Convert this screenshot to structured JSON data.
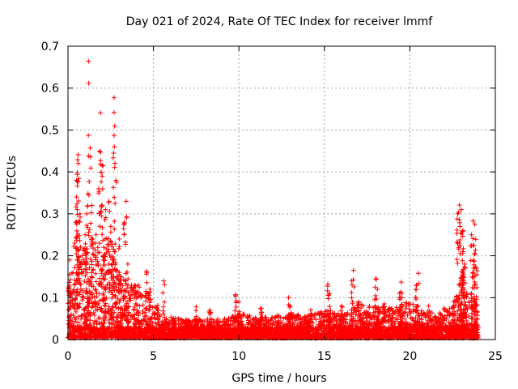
{
  "chart_data": {
    "type": "scatter",
    "title": "Day 021 of 2024, Rate Of TEC Index for receiver lmmf",
    "xlabel": "GPS time / hours",
    "ylabel": "ROTI / TECUs",
    "xlim": [
      0,
      25
    ],
    "ylim": [
      0,
      0.7
    ],
    "xticks": [
      0,
      5,
      10,
      15,
      20,
      25
    ],
    "yticks": [
      0,
      0.1,
      0.2,
      0.3,
      0.4,
      0.5,
      0.6,
      0.7
    ],
    "xtick_labels": [
      "0",
      "5",
      "10",
      "15",
      "20",
      "25"
    ],
    "ytick_labels": [
      "0",
      "0.1",
      "0.2",
      "0.3",
      "0.4",
      "0.5",
      "0.6",
      "0.7"
    ],
    "grid": true,
    "marker": "+",
    "color": "#ff0000",
    "series": [
      {
        "name": "ROTI",
        "notable_points": [
          [
            1.2,
            0.664
          ],
          [
            2.7,
            0.577
          ],
          [
            1.9,
            0.541
          ],
          [
            2.7,
            0.487
          ],
          [
            1.3,
            0.457
          ],
          [
            0.6,
            0.441
          ],
          [
            1.2,
            0.438
          ],
          [
            0.6,
            0.42
          ],
          [
            2.0,
            0.416
          ],
          [
            2.0,
            0.39
          ],
          [
            0.5,
            0.38
          ],
          [
            2.8,
            0.38
          ],
          [
            1.8,
            0.36
          ],
          [
            0.5,
            0.34
          ],
          [
            3.4,
            0.33
          ],
          [
            2.4,
            0.33
          ],
          [
            1.4,
            0.32
          ],
          [
            2.2,
            0.31
          ],
          [
            0.7,
            0.3
          ],
          [
            1.1,
            0.3
          ],
          [
            3.3,
            0.28
          ],
          [
            2.5,
            0.27
          ],
          [
            1.0,
            0.25
          ],
          [
            3.0,
            0.24
          ],
          [
            0.4,
            0.23
          ],
          [
            2.1,
            0.22
          ],
          [
            1.6,
            0.2
          ],
          [
            0.1,
            0.19
          ],
          [
            2.6,
            0.19
          ],
          [
            3.5,
            0.18
          ],
          [
            4.6,
            0.163
          ],
          [
            3.0,
            0.16
          ],
          [
            5.6,
            0.14
          ],
          [
            4.1,
            0.13
          ],
          [
            4.8,
            0.12
          ],
          [
            22.9,
            0.321
          ],
          [
            23.0,
            0.31
          ],
          [
            22.8,
            0.3
          ],
          [
            23.7,
            0.283
          ],
          [
            23.8,
            0.275
          ],
          [
            23.1,
            0.26
          ],
          [
            23.6,
            0.25
          ],
          [
            22.9,
            0.23
          ],
          [
            23.1,
            0.21
          ],
          [
            23.8,
            0.205
          ],
          [
            23.2,
            0.18
          ],
          [
            23.9,
            0.17
          ],
          [
            23.1,
            0.16
          ],
          [
            23.0,
            0.14
          ],
          [
            23.8,
            0.13
          ],
          [
            23.6,
            0.11
          ],
          [
            16.7,
            0.165
          ],
          [
            16.6,
            0.14
          ],
          [
            18.0,
            0.145
          ],
          [
            18.1,
            0.12
          ],
          [
            19.5,
            0.137
          ],
          [
            19.4,
            0.11
          ],
          [
            20.5,
            0.158
          ],
          [
            20.4,
            0.13
          ],
          [
            15.2,
            0.132
          ],
          [
            15.3,
            0.11
          ],
          [
            9.8,
            0.107
          ],
          [
            10.0,
            0.09
          ],
          [
            12.9,
            0.1
          ],
          [
            13.0,
            0.08
          ],
          [
            17.0,
            0.09
          ],
          [
            21.1,
            0.08
          ],
          [
            18.5,
            0.085
          ],
          [
            7.5,
            0.078
          ],
          [
            8.3,
            0.07
          ],
          [
            11.3,
            0.075
          ],
          [
            14.2,
            0.07
          ],
          [
            16.0,
            0.08
          ],
          [
            22.0,
            0.075
          ]
        ],
        "activity_envelope": [
          [
            0,
            0.13
          ],
          [
            0.5,
            0.2
          ],
          [
            1,
            0.22
          ],
          [
            1.5,
            0.25
          ],
          [
            2,
            0.24
          ],
          [
            2.5,
            0.25
          ],
          [
            3,
            0.17
          ],
          [
            3.5,
            0.13
          ],
          [
            4,
            0.13
          ],
          [
            4.5,
            0.11
          ],
          [
            5,
            0.1
          ],
          [
            5.5,
            0.07
          ],
          [
            6,
            0.05
          ],
          [
            7,
            0.045
          ],
          [
            8,
            0.045
          ],
          [
            9,
            0.045
          ],
          [
            10,
            0.06
          ],
          [
            11,
            0.05
          ],
          [
            12,
            0.05
          ],
          [
            13,
            0.06
          ],
          [
            14,
            0.055
          ],
          [
            15,
            0.07
          ],
          [
            16,
            0.06
          ],
          [
            17,
            0.08
          ],
          [
            18,
            0.08
          ],
          [
            19,
            0.07
          ],
          [
            20,
            0.09
          ],
          [
            21,
            0.06
          ],
          [
            22,
            0.06
          ],
          [
            23,
            0.12
          ],
          [
            23.5,
            0.1
          ],
          [
            24,
            0.08
          ]
        ],
        "x_range_observed": [
          0,
          24
        ]
      }
    ]
  }
}
